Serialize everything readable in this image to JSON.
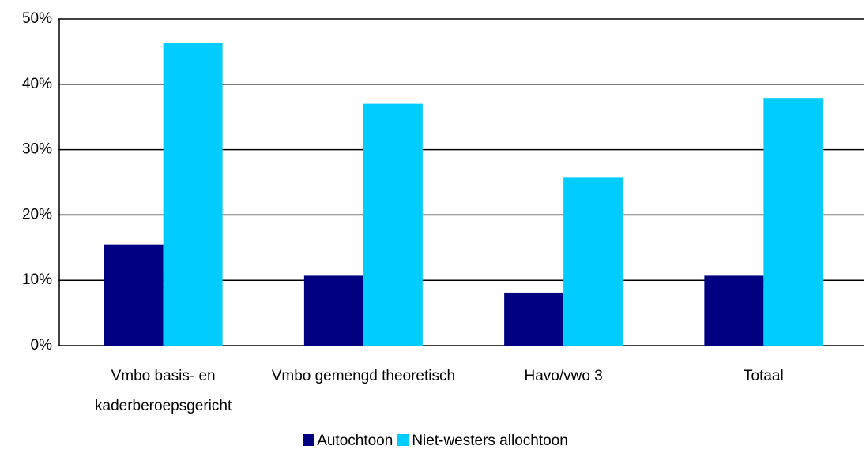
{
  "chart_data": {
    "type": "bar",
    "categories": [
      "Vmbo basis- en kaderberoepsgericht",
      "Vmbo gemengd theoretisch",
      "Havo/vwo 3",
      "Totaal"
    ],
    "series": [
      {
        "name": "Autochtoon",
        "color": "#000080",
        "values": [
          15.5,
          10.7,
          8.1,
          10.7
        ]
      },
      {
        "name": "Niet-westers allochtoon",
        "color": "#00ccff",
        "values": [
          46.3,
          37.0,
          25.8,
          37.9
        ]
      }
    ],
    "ylim": [
      0,
      50
    ],
    "yticks": [
      {
        "value": 0,
        "label": "0%"
      },
      {
        "value": 10,
        "label": "10%"
      },
      {
        "value": 20,
        "label": "20%"
      },
      {
        "value": 30,
        "label": "30%"
      },
      {
        "value": 40,
        "label": "40%"
      },
      {
        "value": 50,
        "label": "50%"
      }
    ],
    "grid": true,
    "legend": "bottom"
  }
}
